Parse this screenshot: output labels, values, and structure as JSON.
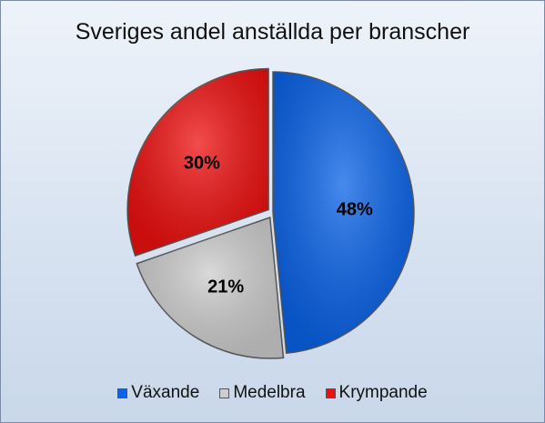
{
  "chart_data": {
    "type": "pie",
    "title": "Sveriges andel anställda per branscher",
    "categories": [
      "Växande",
      "Medelbra",
      "Krympande"
    ],
    "values": [
      48,
      21,
      30
    ],
    "labels": [
      "48%",
      "21%",
      "30%"
    ],
    "colors": [
      "#0a63e8",
      "#cdcdcd",
      "#ee1111"
    ],
    "legend_position": "bottom"
  }
}
